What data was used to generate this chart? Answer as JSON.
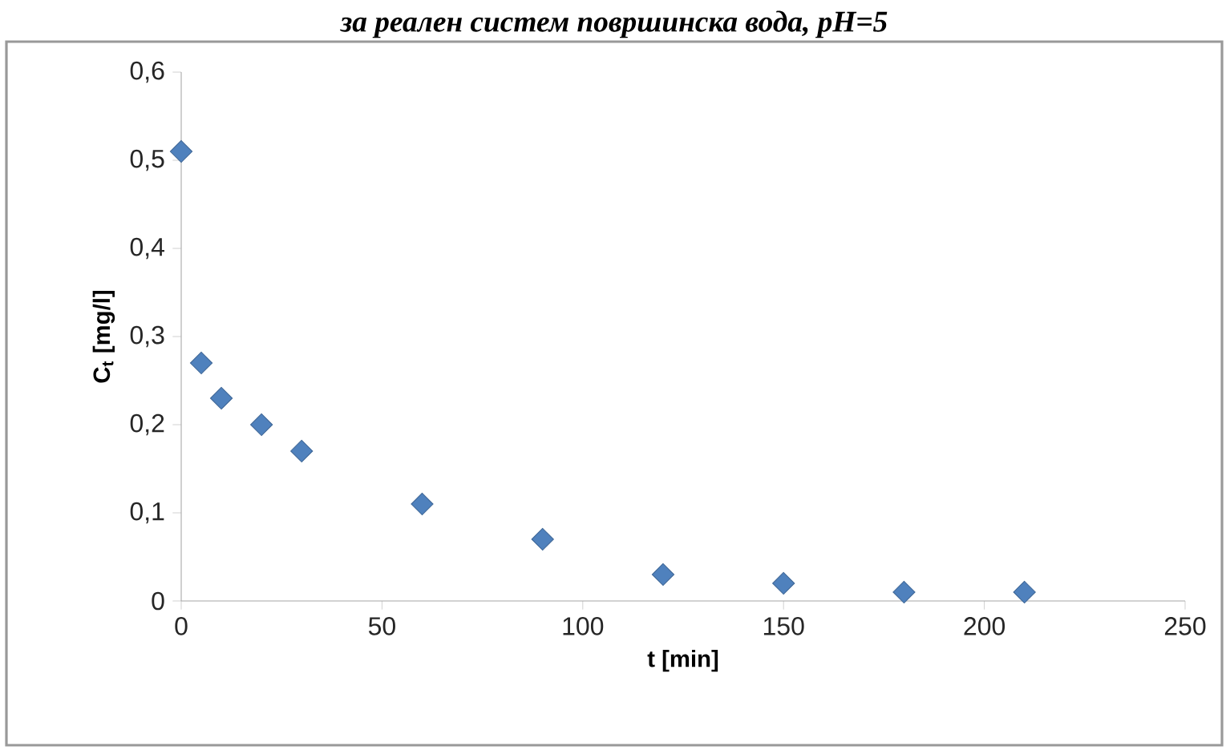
{
  "chart_data": {
    "type": "scatter",
    "title": "за реален систем површинска вода, pH=5",
    "xlabel": "t [min]",
    "ylabel": "C$_{t}$ [mg/l]",
    "x": [
      0,
      5,
      10,
      20,
      30,
      60,
      90,
      120,
      150,
      180,
      210
    ],
    "values": [
      0.51,
      0.27,
      0.23,
      0.2,
      0.17,
      0.11,
      0.07,
      0.03,
      0.02,
      0.01,
      0.01
    ],
    "color": "#4f81bd",
    "marker": "diamond",
    "xlim": [
      0,
      250
    ],
    "xticks": [
      0,
      50,
      100,
      150,
      200,
      250
    ],
    "ylim": [
      0,
      0.6
    ],
    "yticks": [
      0,
      {
        "value": 0.1,
        "label": "0,1"
      },
      {
        "value": 0.2,
        "label": "0,2"
      },
      {
        "value": 0.3,
        "label": "0,3"
      },
      {
        "value": 0.4,
        "label": "0,4"
      },
      {
        "value": 0.5,
        "label": "0,5"
      },
      {
        "value": 0.6,
        "label": "0,6"
      }
    ],
    "grid": false
  }
}
